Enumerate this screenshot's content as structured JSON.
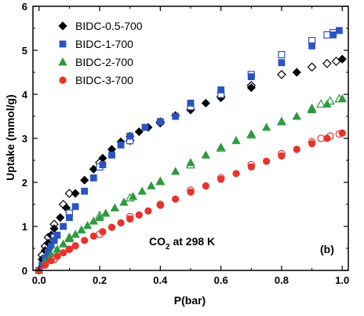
{
  "chart_data": {
    "type": "scatter",
    "xlabel": "P(bar)",
    "ylabel": "Uptake (mmol/g)",
    "xlim": [
      -0.02,
      1.02
    ],
    "ylim": [
      0,
      6
    ],
    "xticks": [
      "0.0",
      "0.2",
      "0.4",
      "0.6",
      "0.8",
      "1.0"
    ],
    "yticks": [
      "0",
      "1",
      "2",
      "3",
      "4",
      "5",
      "6"
    ],
    "grid": false,
    "legend_position": "top-left",
    "annotation_text": "CO",
    "annotation_sub": "2",
    "annotation_rest": " at 298 K",
    "panel_label": "(b)",
    "series": [
      {
        "name": "BIDC-0.5-700",
        "marker": "diamond",
        "color": "#000000",
        "adsorption": {
          "x": [
            0.0,
            0.01,
            0.02,
            0.03,
            0.04,
            0.05,
            0.07,
            0.09,
            0.12,
            0.15,
            0.18,
            0.21,
            0.24,
            0.27,
            0.3,
            0.33,
            0.36,
            0.4,
            0.45,
            0.5,
            0.55,
            0.6,
            0.7,
            0.85,
            1.0
          ],
          "y": [
            0.0,
            0.25,
            0.45,
            0.62,
            0.8,
            0.95,
            1.2,
            1.42,
            1.75,
            2.05,
            2.3,
            2.55,
            2.75,
            2.92,
            3.05,
            3.15,
            3.25,
            3.38,
            3.52,
            3.65,
            3.8,
            3.92,
            4.15,
            4.5,
            4.8
          ]
        },
        "desorption": {
          "x": [
            0.01,
            0.02,
            0.03,
            0.05,
            0.08,
            0.1,
            0.2,
            0.3,
            0.4,
            0.5,
            0.6,
            0.7,
            0.8,
            0.9,
            0.95,
            0.98
          ],
          "y": [
            0.35,
            0.55,
            0.75,
            1.05,
            1.5,
            1.75,
            2.45,
            2.95,
            3.35,
            3.65,
            3.95,
            4.2,
            4.45,
            4.62,
            4.7,
            4.75
          ]
        }
      },
      {
        "name": "BIDC-1-700",
        "marker": "square",
        "color": "#2b54c0",
        "adsorption": {
          "x": [
            0.0,
            0.01,
            0.02,
            0.03,
            0.04,
            0.05,
            0.06,
            0.08,
            0.1,
            0.12,
            0.15,
            0.18,
            0.21,
            0.24,
            0.27,
            0.3,
            0.35,
            0.4,
            0.45,
            0.5,
            0.6,
            0.7,
            0.8,
            0.9,
            0.97,
            0.99
          ],
          "y": [
            0.0,
            0.12,
            0.28,
            0.42,
            0.55,
            0.68,
            0.8,
            1.0,
            1.2,
            1.45,
            1.8,
            2.1,
            2.4,
            2.62,
            2.85,
            3.05,
            3.25,
            3.38,
            3.5,
            3.8,
            4.1,
            4.4,
            4.72,
            5.1,
            5.35,
            5.45
          ]
        },
        "desorption": {
          "x": [
            0.05,
            0.1,
            0.2,
            0.3,
            0.5,
            0.6,
            0.7,
            0.8,
            0.9,
            0.95,
            0.97
          ],
          "y": [
            0.75,
            1.3,
            2.35,
            2.95,
            3.72,
            4.0,
            4.45,
            4.9,
            5.22,
            5.35,
            5.4
          ]
        }
      },
      {
        "name": "BIDC-2-700",
        "marker": "triangle",
        "color": "#2e9a3e",
        "adsorption": {
          "x": [
            0.0,
            0.02,
            0.04,
            0.06,
            0.08,
            0.1,
            0.12,
            0.14,
            0.16,
            0.18,
            0.2,
            0.22,
            0.25,
            0.28,
            0.31,
            0.34,
            0.37,
            0.4,
            0.45,
            0.5,
            0.55,
            0.6,
            0.65,
            0.7,
            0.75,
            0.8,
            0.85,
            0.9,
            0.95,
            1.0
          ],
          "y": [
            0.0,
            0.2,
            0.35,
            0.48,
            0.6,
            0.72,
            0.82,
            0.92,
            1.02,
            1.12,
            1.2,
            1.3,
            1.42,
            1.55,
            1.68,
            1.8,
            1.92,
            2.03,
            2.25,
            2.45,
            2.62,
            2.8,
            2.95,
            3.1,
            3.25,
            3.38,
            3.5,
            3.65,
            3.78,
            3.9
          ]
        },
        "desorption": {
          "x": [
            0.05,
            0.1,
            0.2,
            0.3,
            0.4,
            0.5,
            0.6,
            0.7,
            0.8,
            0.9,
            0.93,
            0.96,
            0.99
          ],
          "y": [
            0.45,
            0.75,
            1.25,
            1.65,
            2.02,
            2.4,
            2.78,
            3.08,
            3.38,
            3.68,
            3.78,
            3.85,
            3.9
          ]
        }
      },
      {
        "name": "BIDC-3-700",
        "marker": "circle",
        "color": "#e8322a",
        "adsorption": {
          "x": [
            0.0,
            0.02,
            0.04,
            0.06,
            0.08,
            0.1,
            0.12,
            0.15,
            0.18,
            0.21,
            0.24,
            0.27,
            0.3,
            0.33,
            0.36,
            0.4,
            0.45,
            0.5,
            0.55,
            0.6,
            0.65,
            0.7,
            0.75,
            0.8,
            0.85,
            0.9,
            0.95,
            1.0
          ],
          "y": [
            0.0,
            0.12,
            0.22,
            0.32,
            0.4,
            0.48,
            0.56,
            0.68,
            0.78,
            0.88,
            0.98,
            1.08,
            1.17,
            1.26,
            1.35,
            1.48,
            1.62,
            1.78,
            1.92,
            2.07,
            2.2,
            2.35,
            2.48,
            2.6,
            2.75,
            2.88,
            3.0,
            3.12
          ]
        },
        "desorption": {
          "x": [
            0.05,
            0.1,
            0.2,
            0.3,
            0.4,
            0.5,
            0.6,
            0.7,
            0.8,
            0.9,
            0.93,
            0.96,
            0.99
          ],
          "y": [
            0.25,
            0.48,
            0.82,
            1.22,
            1.5,
            1.82,
            2.1,
            2.4,
            2.65,
            2.92,
            3.0,
            3.05,
            3.1
          ]
        }
      }
    ]
  }
}
